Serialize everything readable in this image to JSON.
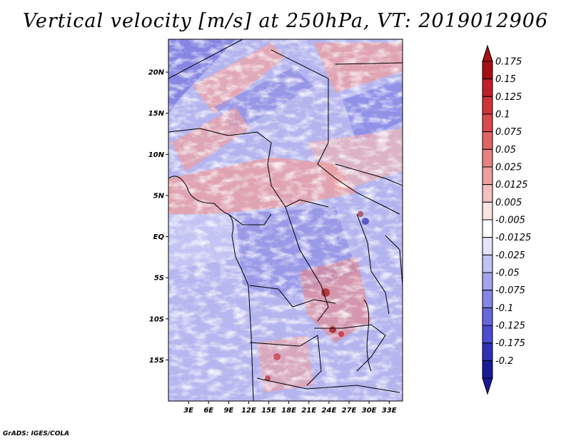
{
  "title": "Vertical velocity [m/s] at 250hPa, VT: 2019012906",
  "credit": "GrADS: IGES/COLA",
  "map": {
    "variable": "Vertical velocity",
    "units": "m/s",
    "level": "250hPa",
    "valid_time": "2019012906",
    "lat_range": [
      -20,
      24
    ],
    "lon_range": [
      0,
      35
    ],
    "lat_ticks": [
      {
        "value": 20,
        "label": "20N"
      },
      {
        "value": 15,
        "label": "15N"
      },
      {
        "value": 10,
        "label": "10N"
      },
      {
        "value": 5,
        "label": "5N"
      },
      {
        "value": 0,
        "label": "EQ"
      },
      {
        "value": -5,
        "label": "5S"
      },
      {
        "value": -10,
        "label": "10S"
      },
      {
        "value": -15,
        "label": "15S"
      }
    ],
    "lon_ticks": [
      {
        "value": 3,
        "label": "3E"
      },
      {
        "value": 6,
        "label": "6E"
      },
      {
        "value": 9,
        "label": "9E"
      },
      {
        "value": 12,
        "label": "12E"
      },
      {
        "value": 15,
        "label": "15E"
      },
      {
        "value": 18,
        "label": "18E"
      },
      {
        "value": 21,
        "label": "21E"
      },
      {
        "value": 24,
        "label": "24E"
      },
      {
        "value": 27,
        "label": "27E"
      },
      {
        "value": 30,
        "label": "30E"
      },
      {
        "value": 33,
        "label": "33E"
      }
    ]
  },
  "colorbar": {
    "labels": [
      "0.175",
      "0.15",
      "0.125",
      "0.1",
      "0.075",
      "0.05",
      "0.025",
      "0.0125",
      "0.005",
      "-0.005",
      "-0.0125",
      "-0.025",
      "-0.05",
      "-0.075",
      "-0.1",
      "-0.125",
      "-0.175",
      "-0.2"
    ],
    "colors": [
      "#a50f15",
      "#c0202a",
      "#d0343a",
      "#d94b4e",
      "#e06666",
      "#e78282",
      "#ee9e9e",
      "#f5c0c0",
      "#fbe3e3",
      "#ffffff",
      "#e3e3fb",
      "#c2c2f5",
      "#a3a3ee",
      "#8585e6",
      "#6868db",
      "#4c4cd0",
      "#3030b8",
      "#1a1a99"
    ],
    "top_color": "#a50f15",
    "bottom_color": "#1a1a99"
  }
}
